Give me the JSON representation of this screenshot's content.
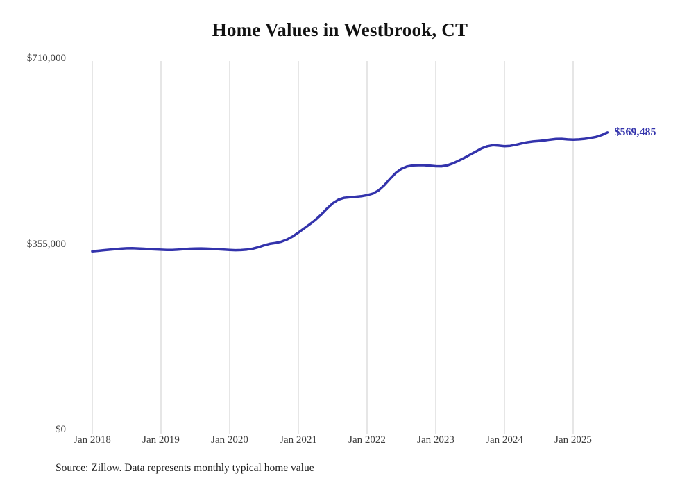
{
  "title": "Home Values in Westbrook, CT",
  "source_note": "Source: Zillow. Data represents monthly typical home value",
  "end_label": "$569,485",
  "colors": {
    "line": "#3333ac",
    "gridline": "#d9d9d9",
    "axis_text": "#3d3d3d",
    "title_text": "#111111"
  },
  "y_axis": {
    "ticks": [
      "$0",
      "$355,000",
      "$710,000"
    ],
    "tick_values": [
      0,
      355000,
      710000
    ],
    "min": 0,
    "max": 710000
  },
  "x_axis": {
    "ticks": [
      "Jan 2018",
      "Jan 2019",
      "Jan 2020",
      "Jan 2021",
      "Jan 2022",
      "Jan 2023",
      "Jan 2024",
      "Jan 2025"
    ]
  },
  "chart_data": {
    "type": "line",
    "title": "Home Values in Westbrook, CT",
    "series_name": "Typical home value (USD)",
    "ylabel": "",
    "xlabel": "",
    "ylim": [
      0,
      710000
    ],
    "grid": "vertical gridlines at each January",
    "legend": "none",
    "final_value": 569485,
    "final_value_label": "$569,485",
    "x": [
      "2018-01",
      "2018-02",
      "2018-03",
      "2018-04",
      "2018-05",
      "2018-06",
      "2018-07",
      "2018-08",
      "2018-09",
      "2018-10",
      "2018-11",
      "2018-12",
      "2019-01",
      "2019-02",
      "2019-03",
      "2019-04",
      "2019-05",
      "2019-06",
      "2019-07",
      "2019-08",
      "2019-09",
      "2019-10",
      "2019-11",
      "2019-12",
      "2020-01",
      "2020-02",
      "2020-03",
      "2020-04",
      "2020-05",
      "2020-06",
      "2020-07",
      "2020-08",
      "2020-09",
      "2020-10",
      "2020-11",
      "2020-12",
      "2021-01",
      "2021-02",
      "2021-03",
      "2021-04",
      "2021-05",
      "2021-06",
      "2021-07",
      "2021-08",
      "2021-09",
      "2021-10",
      "2021-11",
      "2021-12",
      "2022-01",
      "2022-02",
      "2022-03",
      "2022-04",
      "2022-05",
      "2022-06",
      "2022-07",
      "2022-08",
      "2022-09",
      "2022-10",
      "2022-11",
      "2022-12",
      "2023-01",
      "2023-02",
      "2023-03",
      "2023-04",
      "2023-05",
      "2023-06",
      "2023-07",
      "2023-08",
      "2023-09",
      "2023-10",
      "2023-11",
      "2023-12",
      "2024-01",
      "2024-02",
      "2024-03",
      "2024-04",
      "2024-05",
      "2024-06",
      "2024-07",
      "2024-08",
      "2024-09",
      "2024-10",
      "2024-11",
      "2024-12",
      "2025-01",
      "2025-02",
      "2025-03",
      "2025-04",
      "2025-05",
      "2025-06",
      "2025-07"
    ],
    "values": [
      342000,
      343000,
      344200,
      345200,
      346300,
      347200,
      347800,
      348000,
      347600,
      347000,
      346300,
      345700,
      345200,
      344800,
      344700,
      345300,
      346200,
      347000,
      347500,
      347600,
      347200,
      346700,
      346100,
      345500,
      344800,
      344300,
      344500,
      345500,
      347000,
      350000,
      353500,
      356500,
      358000,
      360500,
      364500,
      370500,
      378000,
      386000,
      394000,
      402500,
      412500,
      424000,
      434000,
      441000,
      444500,
      445500,
      446500,
      447500,
      449500,
      452500,
      458500,
      468500,
      480500,
      492000,
      500000,
      504500,
      506500,
      507000,
      507000,
      506000,
      505000,
      504800,
      506500,
      510500,
      515500,
      521000,
      527000,
      533000,
      539000,
      543000,
      545000,
      544200,
      543200,
      543800,
      545800,
      548500,
      550800,
      552200,
      553200,
      554200,
      555800,
      557000,
      557200,
      556200,
      555800,
      556200,
      557200,
      558800,
      561000,
      564500,
      569485
    ]
  }
}
